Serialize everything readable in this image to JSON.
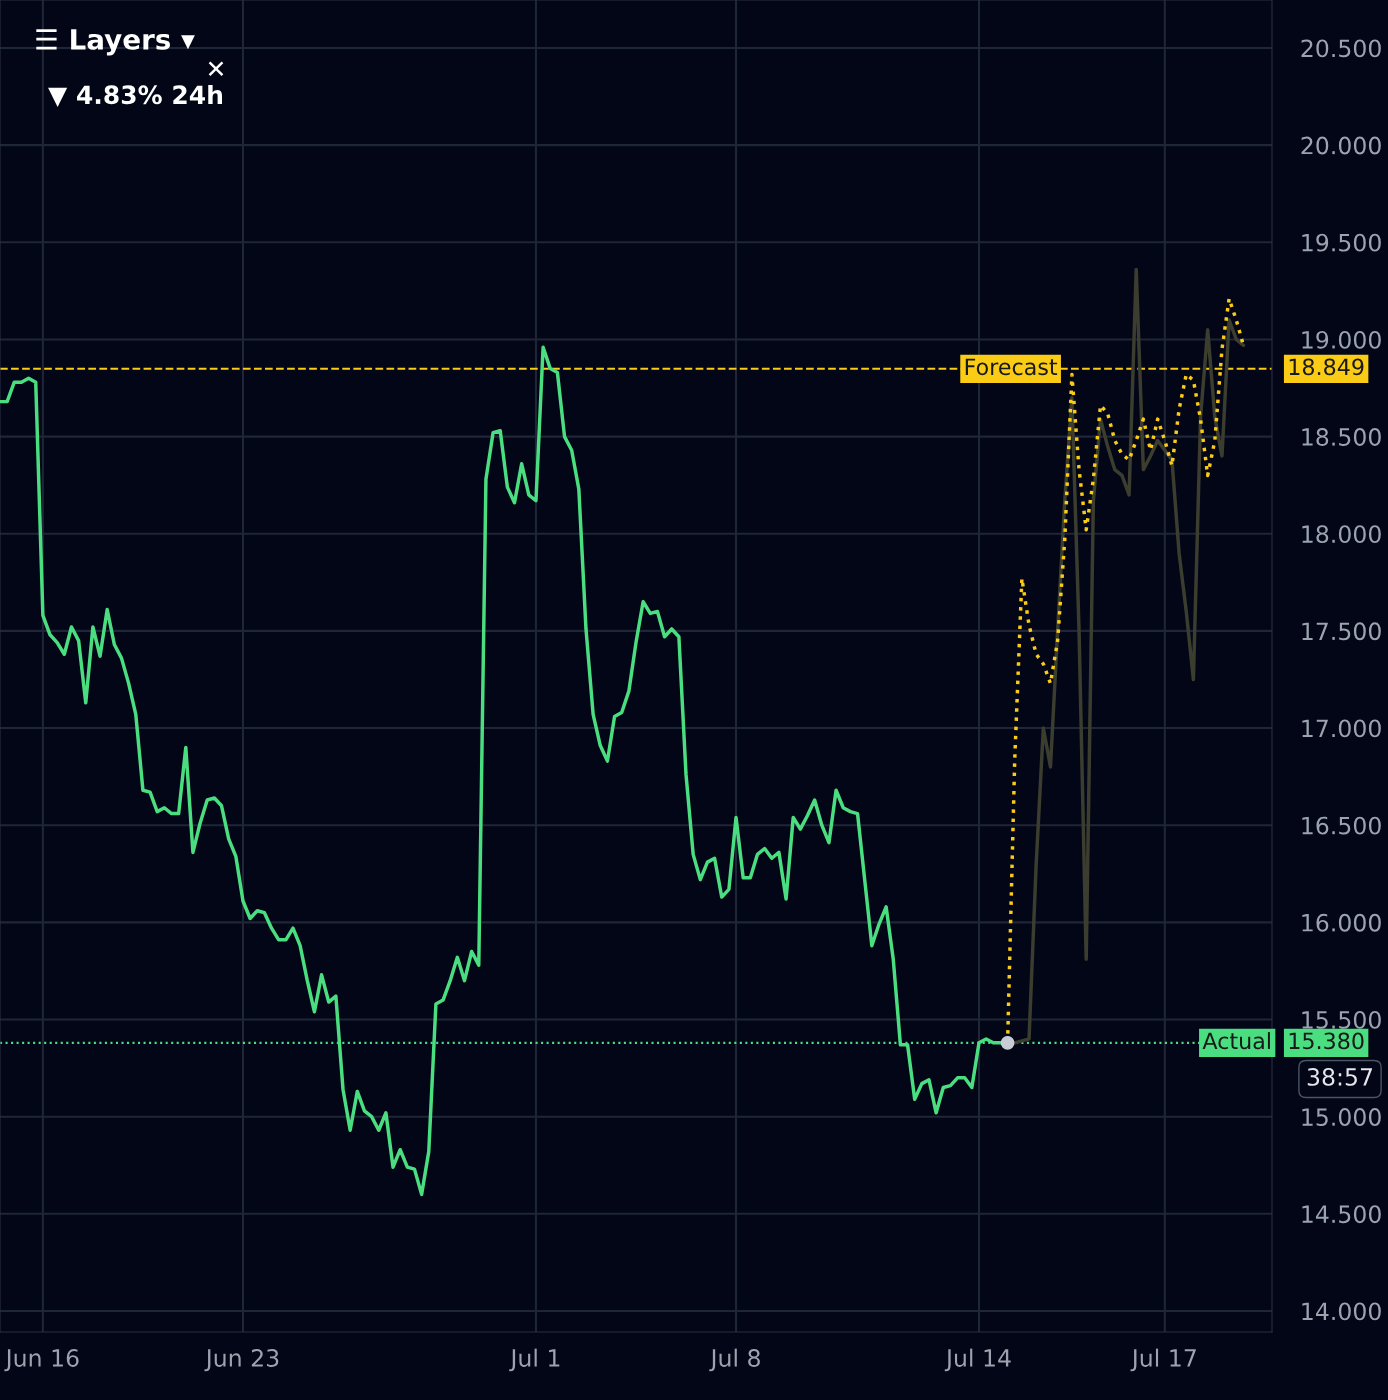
{
  "chart_data": {
    "type": "line",
    "categories": [
      null,
      null,
      null,
      null,
      null,
      null,
      "Jun 16",
      null,
      null,
      null,
      null,
      null,
      null,
      null,
      null,
      null,
      null,
      null,
      null,
      null,
      null,
      null,
      null,
      null,
      null,
      null,
      null,
      null,
      null,
      null,
      null,
      null,
      null,
      null,
      "Jun 23",
      null,
      null,
      null,
      null,
      null,
      null,
      null,
      null,
      null,
      null,
      null,
      null,
      null,
      null,
      null,
      null,
      null,
      null,
      null,
      null,
      null,
      null,
      null,
      null,
      null,
      null,
      null,
      null,
      null,
      null,
      null,
      null,
      null,
      null,
      null,
      null,
      null,
      null,
      null,
      null,
      "Jul 1",
      null,
      null,
      null,
      null,
      null,
      null,
      null,
      null,
      null,
      null,
      null,
      null,
      null,
      null,
      null,
      null,
      null,
      null,
      null,
      null,
      null,
      null,
      null,
      null,
      null,
      null,
      null,
      "Jul 8",
      null,
      null,
      null,
      null,
      null,
      null,
      null,
      null,
      null,
      null,
      null,
      null,
      null,
      null,
      null,
      null,
      null,
      null,
      null,
      null,
      null,
      null,
      null,
      null,
      null,
      null,
      null,
      null,
      null,
      null,
      null,
      null,
      null,
      "Jul 14",
      null,
      null,
      null,
      null,
      null,
      null,
      null,
      null,
      null,
      null,
      null,
      null,
      null,
      null,
      null,
      null,
      null,
      null,
      null,
      null,
      null,
      null,
      null,
      null,
      null,
      "Jul 17",
      null,
      null,
      null,
      null,
      null,
      null,
      null,
      null,
      null,
      null,
      null
    ],
    "ylim": [
      13.892,
      20.747
    ],
    "yticks": [
      {
        "value": 14,
        "label": "14.000"
      },
      {
        "value": 14.5,
        "label": "14.500"
      },
      {
        "value": 15,
        "label": "15.000"
      },
      {
        "value": 15.5,
        "label": "15.500"
      },
      {
        "value": 16,
        "label": "16.000"
      },
      {
        "value": 16.5,
        "label": "16.500"
      },
      {
        "value": 17,
        "label": "17.000"
      },
      {
        "value": 17.5,
        "label": "17.500"
      },
      {
        "value": 18,
        "label": "18.000"
      },
      {
        "value": 18.5,
        "label": "18.500"
      },
      {
        "value": 19,
        "label": "19.000"
      },
      {
        "value": 19.5,
        "label": "19.500"
      },
      {
        "value": 20,
        "label": "20.000"
      },
      {
        "value": 20.5,
        "label": "20.500"
      }
    ],
    "grid": true,
    "series": [
      {
        "color": "#4ade80",
        "line_style": "solid",
        "values": [
          18.68,
          18.68,
          18.78,
          18.78,
          18.8,
          18.78,
          17.58,
          17.48,
          17.44,
          17.38,
          17.52,
          17.45,
          17.13,
          17.52,
          17.37,
          17.61,
          17.43,
          17.36,
          17.23,
          17.07,
          16.68,
          16.67,
          16.57,
          16.59,
          16.56,
          16.56,
          16.9,
          16.36,
          16.51,
          16.63,
          16.64,
          16.6,
          16.43,
          16.34,
          16.11,
          16.02,
          16.06,
          16.05,
          15.97,
          15.91,
          15.91,
          15.97,
          15.88,
          15.7,
          15.54,
          15.73,
          15.59,
          15.62,
          15.14,
          14.93,
          15.13,
          15.03,
          15.0,
          14.93,
          15.02,
          14.74,
          14.83,
          14.74,
          14.73,
          14.6,
          14.82,
          15.58,
          15.6,
          15.7,
          15.82,
          15.7,
          15.85,
          15.78,
          18.28,
          18.52,
          18.53,
          18.24,
          18.16,
          18.36,
          18.2,
          18.17,
          18.96,
          18.85,
          18.83,
          18.5,
          18.43,
          18.23,
          17.51,
          17.07,
          16.91,
          16.83,
          17.06,
          17.08,
          17.19,
          17.44,
          17.65,
          17.59,
          17.6,
          17.47,
          17.51,
          17.47,
          16.76,
          16.35,
          16.22,
          16.31,
          16.33,
          16.13,
          16.17,
          16.54,
          16.23,
          16.23,
          16.35,
          16.38,
          16.33,
          16.36,
          16.12,
          16.54,
          16.48,
          16.55,
          16.63,
          16.5,
          16.41,
          16.68,
          16.59,
          16.57,
          16.56,
          16.22,
          15.88,
          15.99,
          16.08,
          15.81,
          15.37,
          15.37,
          15.09,
          15.17,
          15.19,
          15.02,
          15.15,
          15.16,
          15.2,
          15.2,
          15.15,
          15.38,
          15.4,
          15.38,
          15.38,
          15.38,
          null,
          null,
          null,
          null,
          null,
          null,
          null,
          null,
          null,
          null,
          null,
          null,
          null,
          null,
          null,
          null,
          null,
          null,
          null,
          null,
          null,
          null,
          null,
          null,
          null,
          null,
          null,
          null,
          null,
          null,
          null,
          null,
          null
        ]
      },
      {
        "color": "#3b3d2e",
        "line_style": "solid",
        "values": [
          null,
          null,
          null,
          null,
          null,
          null,
          null,
          null,
          null,
          null,
          null,
          null,
          null,
          null,
          null,
          null,
          null,
          null,
          null,
          null,
          null,
          null,
          null,
          null,
          null,
          null,
          null,
          null,
          null,
          null,
          null,
          null,
          null,
          null,
          null,
          null,
          null,
          null,
          null,
          null,
          null,
          null,
          null,
          null,
          null,
          null,
          null,
          null,
          null,
          null,
          null,
          null,
          null,
          null,
          null,
          null,
          null,
          null,
          null,
          null,
          null,
          null,
          null,
          null,
          null,
          null,
          null,
          null,
          null,
          null,
          null,
          null,
          null,
          null,
          null,
          null,
          null,
          null,
          null,
          null,
          null,
          null,
          null,
          null,
          null,
          null,
          null,
          null,
          null,
          null,
          null,
          null,
          null,
          null,
          null,
          null,
          null,
          null,
          null,
          null,
          null,
          null,
          null,
          null,
          null,
          null,
          null,
          null,
          null,
          null,
          null,
          null,
          null,
          null,
          null,
          null,
          null,
          null,
          null,
          null,
          null,
          null,
          null,
          null,
          null,
          null,
          null,
          null,
          null,
          null,
          null,
          null,
          null,
          null,
          null,
          null,
          null,
          null,
          null,
          null,
          null,
          15.38,
          15.38,
          15.39,
          15.4,
          16.3,
          17.0,
          16.8,
          17.5,
          18.17,
          18.7,
          17.5,
          15.81,
          18.17,
          18.59,
          18.45,
          18.33,
          18.3,
          18.2,
          19.36,
          18.33,
          18.4,
          18.48,
          18.43,
          18.38,
          17.9,
          17.6,
          17.25,
          18.6,
          19.05,
          18.6,
          18.4,
          19.1,
          19.0,
          18.97
        ]
      },
      {
        "color": "#facc15",
        "line_style": "dotted",
        "values": [
          null,
          null,
          null,
          null,
          null,
          null,
          null,
          null,
          null,
          null,
          null,
          null,
          null,
          null,
          null,
          null,
          null,
          null,
          null,
          null,
          null,
          null,
          null,
          null,
          null,
          null,
          null,
          null,
          null,
          null,
          null,
          null,
          null,
          null,
          null,
          null,
          null,
          null,
          null,
          null,
          null,
          null,
          null,
          null,
          null,
          null,
          null,
          null,
          null,
          null,
          null,
          null,
          null,
          null,
          null,
          null,
          null,
          null,
          null,
          null,
          null,
          null,
          null,
          null,
          null,
          null,
          null,
          null,
          null,
          null,
          null,
          null,
          null,
          null,
          null,
          null,
          null,
          null,
          null,
          null,
          null,
          null,
          null,
          null,
          null,
          null,
          null,
          null,
          null,
          null,
          null,
          null,
          null,
          null,
          null,
          null,
          null,
          null,
          null,
          null,
          null,
          null,
          null,
          null,
          null,
          null,
          null,
          null,
          null,
          null,
          null,
          null,
          null,
          null,
          null,
          null,
          null,
          null,
          null,
          null,
          null,
          null,
          null,
          null,
          null,
          null,
          null,
          null,
          null,
          null,
          null,
          null,
          null,
          null,
          null,
          null,
          null,
          null,
          null,
          null,
          null,
          15.38,
          16.84,
          17.77,
          17.53,
          17.38,
          17.33,
          17.23,
          17.45,
          17.97,
          18.82,
          18.33,
          18.02,
          18.28,
          18.66,
          18.62,
          18.48,
          18.41,
          18.38,
          18.48,
          18.59,
          18.43,
          18.59,
          18.48,
          18.35,
          18.64,
          18.82,
          18.79,
          18.59,
          18.3,
          18.48,
          18.95,
          19.21,
          19.1,
          18.97
        ]
      },
      {
        "type": "scatter",
        "marker": "circle",
        "color": "#c8ccd4",
        "values": [
          null,
          null,
          null,
          null,
          null,
          null,
          null,
          null,
          null,
          null,
          null,
          null,
          null,
          null,
          null,
          null,
          null,
          null,
          null,
          null,
          null,
          null,
          null,
          null,
          null,
          null,
          null,
          null,
          null,
          null,
          null,
          null,
          null,
          null,
          null,
          null,
          null,
          null,
          null,
          null,
          null,
          null,
          null,
          null,
          null,
          null,
          null,
          null,
          null,
          null,
          null,
          null,
          null,
          null,
          null,
          null,
          null,
          null,
          null,
          null,
          null,
          null,
          null,
          null,
          null,
          null,
          null,
          null,
          null,
          null,
          null,
          null,
          null,
          null,
          null,
          null,
          null,
          null,
          null,
          null,
          null,
          null,
          null,
          null,
          null,
          null,
          null,
          null,
          null,
          null,
          null,
          null,
          null,
          null,
          null,
          null,
          null,
          null,
          null,
          null,
          null,
          null,
          null,
          null,
          null,
          null,
          null,
          null,
          null,
          null,
          null,
          null,
          null,
          null,
          null,
          null,
          null,
          null,
          null,
          null,
          null,
          null,
          null,
          null,
          null,
          null,
          null,
          null,
          null,
          null,
          null,
          null,
          null,
          null,
          null,
          null,
          null,
          null,
          null,
          null,
          null,
          15.38,
          null,
          null,
          null,
          null,
          null,
          null,
          null,
          null,
          null,
          null,
          null,
          null,
          null,
          null,
          null,
          null,
          null,
          null,
          null,
          null,
          null,
          null,
          null,
          null,
          null,
          null,
          null,
          null,
          null,
          null,
          null,
          null,
          null
        ]
      }
    ],
    "ref_lines": [
      {
        "axis": "y",
        "value": 18.849,
        "label": "Forecast",
        "color": "#facc15",
        "line_style": "dashed"
      },
      {
        "axis": "y",
        "value": 15.38,
        "label": "Actual",
        "color": "#4ade80",
        "line_style": "dotted"
      }
    ],
    "annotations": [
      "☰ Layers ▾",
      "▼ 4.83% 24h",
      "✕",
      "38:57",
      "18.849",
      "15.380"
    ]
  }
}
